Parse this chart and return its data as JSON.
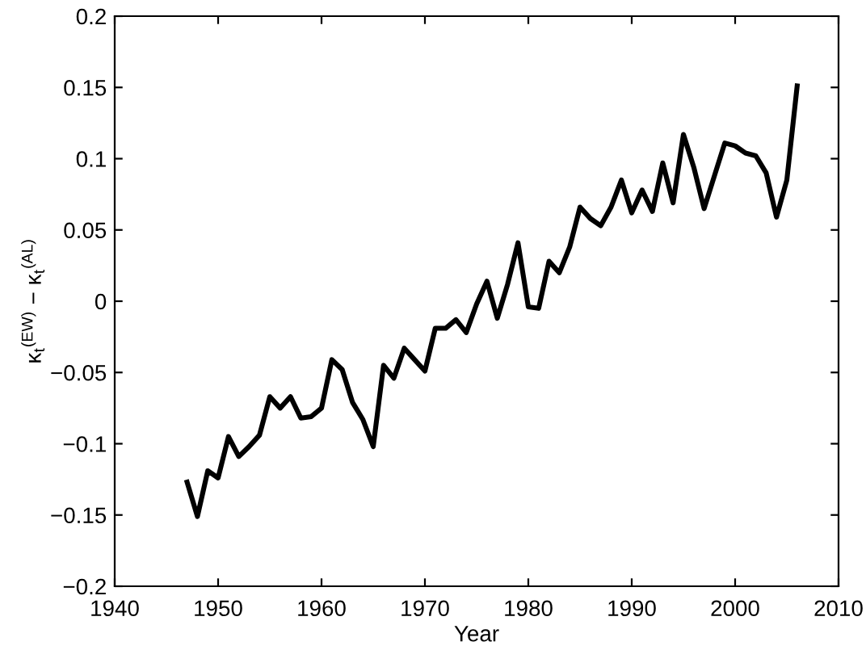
{
  "chart_data": {
    "type": "line",
    "xlabel": "Year",
    "ylabel": "κ$_{t}$$^{(EW)}$ − κ$_{t}$$^{(AL)}$",
    "x": [
      1947,
      1948,
      1949,
      1950,
      1951,
      1952,
      1953,
      1954,
      1955,
      1956,
      1957,
      1958,
      1959,
      1960,
      1961,
      1962,
      1963,
      1964,
      1965,
      1966,
      1967,
      1968,
      1969,
      1970,
      1971,
      1972,
      1973,
      1974,
      1975,
      1976,
      1977,
      1978,
      1979,
      1980,
      1981,
      1982,
      1983,
      1984,
      1985,
      1986,
      1987,
      1988,
      1989,
      1990,
      1991,
      1992,
      1993,
      1994,
      1995,
      1996,
      1997,
      1998,
      1999,
      2000,
      2001,
      2002,
      2003,
      2004,
      2005,
      2006
    ],
    "series": [
      {
        "color": "#000000",
        "values": [
          -0.127,
          -0.151,
          -0.119,
          -0.124,
          -0.095,
          -0.109,
          -0.102,
          -0.094,
          -0.067,
          -0.075,
          -0.067,
          -0.082,
          -0.081,
          -0.075,
          -0.041,
          -0.048,
          -0.071,
          -0.083,
          -0.102,
          -0.045,
          -0.054,
          -0.033,
          -0.041,
          -0.049,
          -0.019,
          -0.019,
          -0.013,
          -0.022,
          -0.002,
          0.014,
          -0.012,
          0.012,
          0.041,
          -0.004,
          -0.005,
          0.028,
          0.02,
          0.038,
          0.066,
          0.058,
          0.053,
          0.066,
          0.085,
          0.062,
          0.078,
          0.063,
          0.097,
          0.069,
          0.117,
          0.094,
          0.065,
          0.088,
          0.111,
          0.109,
          0.104,
          0.102,
          0.09,
          0.059,
          0.085,
          0.151
        ]
      }
    ],
    "xlim": [
      1940,
      2010
    ],
    "xticks": [
      1940,
      1950,
      1960,
      1970,
      1980,
      1990,
      2000,
      2010
    ],
    "ylim": [
      -0.2,
      0.2
    ],
    "yticks": [
      {
        "value": -0.2,
        "label": "−0.2"
      },
      {
        "value": -0.15,
        "label": "−0.15"
      },
      {
        "value": -0.1,
        "label": "−0.1"
      },
      {
        "value": -0.05,
        "label": "−0.05"
      },
      0,
      0.05,
      0.1,
      0.15,
      0.2
    ],
    "grid": false,
    "marker": "none",
    "line_style": "solid"
  }
}
